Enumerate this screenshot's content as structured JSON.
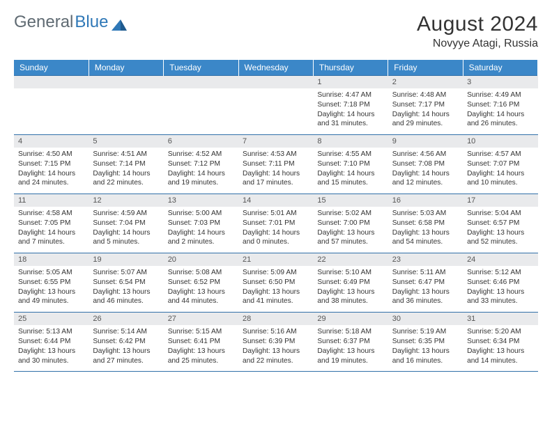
{
  "logo": {
    "word1": "General",
    "word2": "Blue"
  },
  "title": "August 2024",
  "location": "Novyye Atagi, Russia",
  "colors": {
    "header_bg": "#3b87c8",
    "header_text": "#ffffff",
    "row_border": "#2f6fa8",
    "daynum_bg": "#e9eaec",
    "logo_gray": "#5f6a72",
    "logo_blue": "#2f78b7",
    "text": "#333333",
    "background": "#ffffff"
  },
  "day_headers": [
    "Sunday",
    "Monday",
    "Tuesday",
    "Wednesday",
    "Thursday",
    "Friday",
    "Saturday"
  ],
  "weeks": [
    [
      null,
      null,
      null,
      null,
      {
        "n": "1",
        "sr": "4:47 AM",
        "ss": "7:18 PM",
        "dh": "14",
        "dm": "31"
      },
      {
        "n": "2",
        "sr": "4:48 AM",
        "ss": "7:17 PM",
        "dh": "14",
        "dm": "29"
      },
      {
        "n": "3",
        "sr": "4:49 AM",
        "ss": "7:16 PM",
        "dh": "14",
        "dm": "26"
      }
    ],
    [
      {
        "n": "4",
        "sr": "4:50 AM",
        "ss": "7:15 PM",
        "dh": "14",
        "dm": "24"
      },
      {
        "n": "5",
        "sr": "4:51 AM",
        "ss": "7:14 PM",
        "dh": "14",
        "dm": "22"
      },
      {
        "n": "6",
        "sr": "4:52 AM",
        "ss": "7:12 PM",
        "dh": "14",
        "dm": "19"
      },
      {
        "n": "7",
        "sr": "4:53 AM",
        "ss": "7:11 PM",
        "dh": "14",
        "dm": "17"
      },
      {
        "n": "8",
        "sr": "4:55 AM",
        "ss": "7:10 PM",
        "dh": "14",
        "dm": "15"
      },
      {
        "n": "9",
        "sr": "4:56 AM",
        "ss": "7:08 PM",
        "dh": "14",
        "dm": "12"
      },
      {
        "n": "10",
        "sr": "4:57 AM",
        "ss": "7:07 PM",
        "dh": "14",
        "dm": "10"
      }
    ],
    [
      {
        "n": "11",
        "sr": "4:58 AM",
        "ss": "7:05 PM",
        "dh": "14",
        "dm": "7"
      },
      {
        "n": "12",
        "sr": "4:59 AM",
        "ss": "7:04 PM",
        "dh": "14",
        "dm": "5"
      },
      {
        "n": "13",
        "sr": "5:00 AM",
        "ss": "7:03 PM",
        "dh": "14",
        "dm": "2"
      },
      {
        "n": "14",
        "sr": "5:01 AM",
        "ss": "7:01 PM",
        "dh": "14",
        "dm": "0"
      },
      {
        "n": "15",
        "sr": "5:02 AM",
        "ss": "7:00 PM",
        "dh": "13",
        "dm": "57"
      },
      {
        "n": "16",
        "sr": "5:03 AM",
        "ss": "6:58 PM",
        "dh": "13",
        "dm": "54"
      },
      {
        "n": "17",
        "sr": "5:04 AM",
        "ss": "6:57 PM",
        "dh": "13",
        "dm": "52"
      }
    ],
    [
      {
        "n": "18",
        "sr": "5:05 AM",
        "ss": "6:55 PM",
        "dh": "13",
        "dm": "49"
      },
      {
        "n": "19",
        "sr": "5:07 AM",
        "ss": "6:54 PM",
        "dh": "13",
        "dm": "46"
      },
      {
        "n": "20",
        "sr": "5:08 AM",
        "ss": "6:52 PM",
        "dh": "13",
        "dm": "44"
      },
      {
        "n": "21",
        "sr": "5:09 AM",
        "ss": "6:50 PM",
        "dh": "13",
        "dm": "41"
      },
      {
        "n": "22",
        "sr": "5:10 AM",
        "ss": "6:49 PM",
        "dh": "13",
        "dm": "38"
      },
      {
        "n": "23",
        "sr": "5:11 AM",
        "ss": "6:47 PM",
        "dh": "13",
        "dm": "36"
      },
      {
        "n": "24",
        "sr": "5:12 AM",
        "ss": "6:46 PM",
        "dh": "13",
        "dm": "33"
      }
    ],
    [
      {
        "n": "25",
        "sr": "5:13 AM",
        "ss": "6:44 PM",
        "dh": "13",
        "dm": "30"
      },
      {
        "n": "26",
        "sr": "5:14 AM",
        "ss": "6:42 PM",
        "dh": "13",
        "dm": "27"
      },
      {
        "n": "27",
        "sr": "5:15 AM",
        "ss": "6:41 PM",
        "dh": "13",
        "dm": "25"
      },
      {
        "n": "28",
        "sr": "5:16 AM",
        "ss": "6:39 PM",
        "dh": "13",
        "dm": "22"
      },
      {
        "n": "29",
        "sr": "5:18 AM",
        "ss": "6:37 PM",
        "dh": "13",
        "dm": "19"
      },
      {
        "n": "30",
        "sr": "5:19 AM",
        "ss": "6:35 PM",
        "dh": "13",
        "dm": "16"
      },
      {
        "n": "31",
        "sr": "5:20 AM",
        "ss": "6:34 PM",
        "dh": "13",
        "dm": "14"
      }
    ]
  ],
  "labels": {
    "sunrise_prefix": "Sunrise: ",
    "sunset_prefix": "Sunset: ",
    "daylight_prefix": "Daylight: ",
    "hours_word": " hours",
    "and_word": "and ",
    "minutes_word": " minutes."
  },
  "typography": {
    "title_fontsize": 30,
    "location_fontsize": 16,
    "header_fontsize": 12,
    "daynum_fontsize": 11,
    "body_fontsize": 10.2,
    "font_family": "Arial"
  }
}
